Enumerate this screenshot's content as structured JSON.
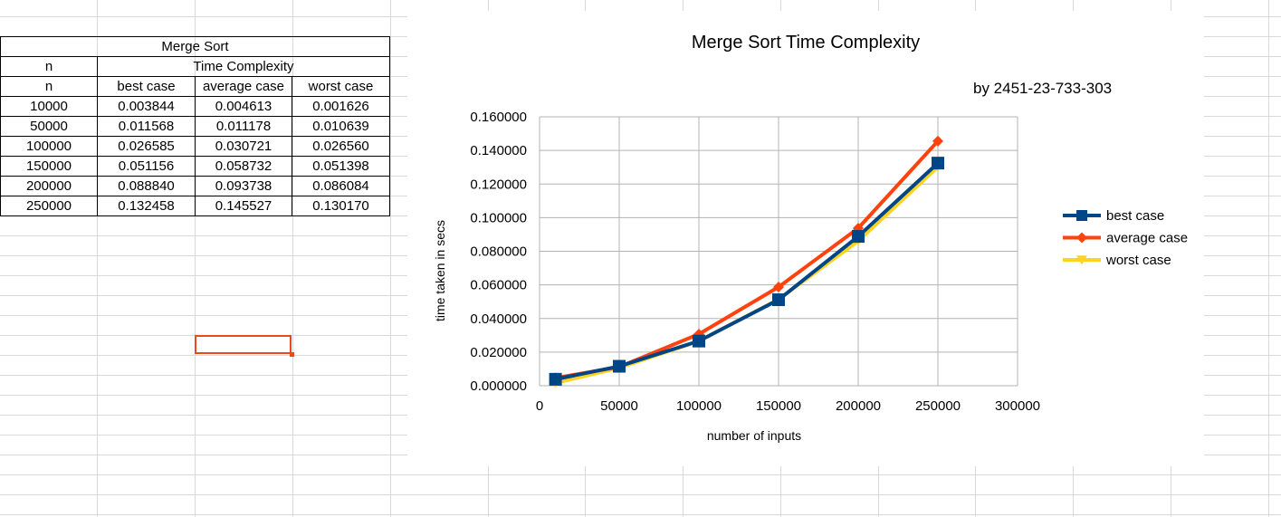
{
  "table": {
    "title": "Merge Sort",
    "header_row1": [
      "n",
      "Time Complexity"
    ],
    "header_row2": [
      "n",
      "best case",
      "average case",
      "worst case"
    ],
    "rows": [
      [
        "10000",
        "0.003844",
        "0.004613",
        "0.001626"
      ],
      [
        "50000",
        "0.011568",
        "0.011178",
        "0.010639"
      ],
      [
        "100000",
        "0.026585",
        "0.030721",
        "0.026560"
      ],
      [
        "150000",
        "0.051156",
        "0.058732",
        "0.051398"
      ],
      [
        "200000",
        "0.088840",
        "0.093738",
        "0.086084"
      ],
      [
        "250000",
        "0.132458",
        "0.145527",
        "0.130170"
      ]
    ]
  },
  "chart_data": {
    "type": "line",
    "title": "Merge Sort Time Complexity",
    "subtitle": "by 2451-23-733-303",
    "xlabel": "number of inputs",
    "ylabel": "time taken in secs",
    "x": [
      10000,
      50000,
      100000,
      150000,
      200000,
      250000
    ],
    "xlim": [
      0,
      300000
    ],
    "ylim": [
      0,
      0.16
    ],
    "x_ticks": [
      "0",
      "50000",
      "100000",
      "150000",
      "200000",
      "250000",
      "300000"
    ],
    "y_ticks": [
      "0.000000",
      "0.020000",
      "0.040000",
      "0.060000",
      "0.080000",
      "0.100000",
      "0.120000",
      "0.140000",
      "0.160000"
    ],
    "grid": true,
    "legend_position": "right",
    "series": [
      {
        "name": "best case",
        "color": "#004586",
        "marker": "square",
        "values": [
          0.003844,
          0.011568,
          0.026585,
          0.051156,
          0.08884,
          0.132458
        ]
      },
      {
        "name": "average case",
        "color": "#ff420e",
        "marker": "diamond",
        "values": [
          0.004613,
          0.011178,
          0.030721,
          0.058732,
          0.093738,
          0.145527
        ]
      },
      {
        "name": "worst case",
        "color": "#ffd320",
        "marker": "triangle-down",
        "values": [
          0.001626,
          0.010639,
          0.02656,
          0.051398,
          0.086084,
          0.13017
        ]
      }
    ]
  }
}
